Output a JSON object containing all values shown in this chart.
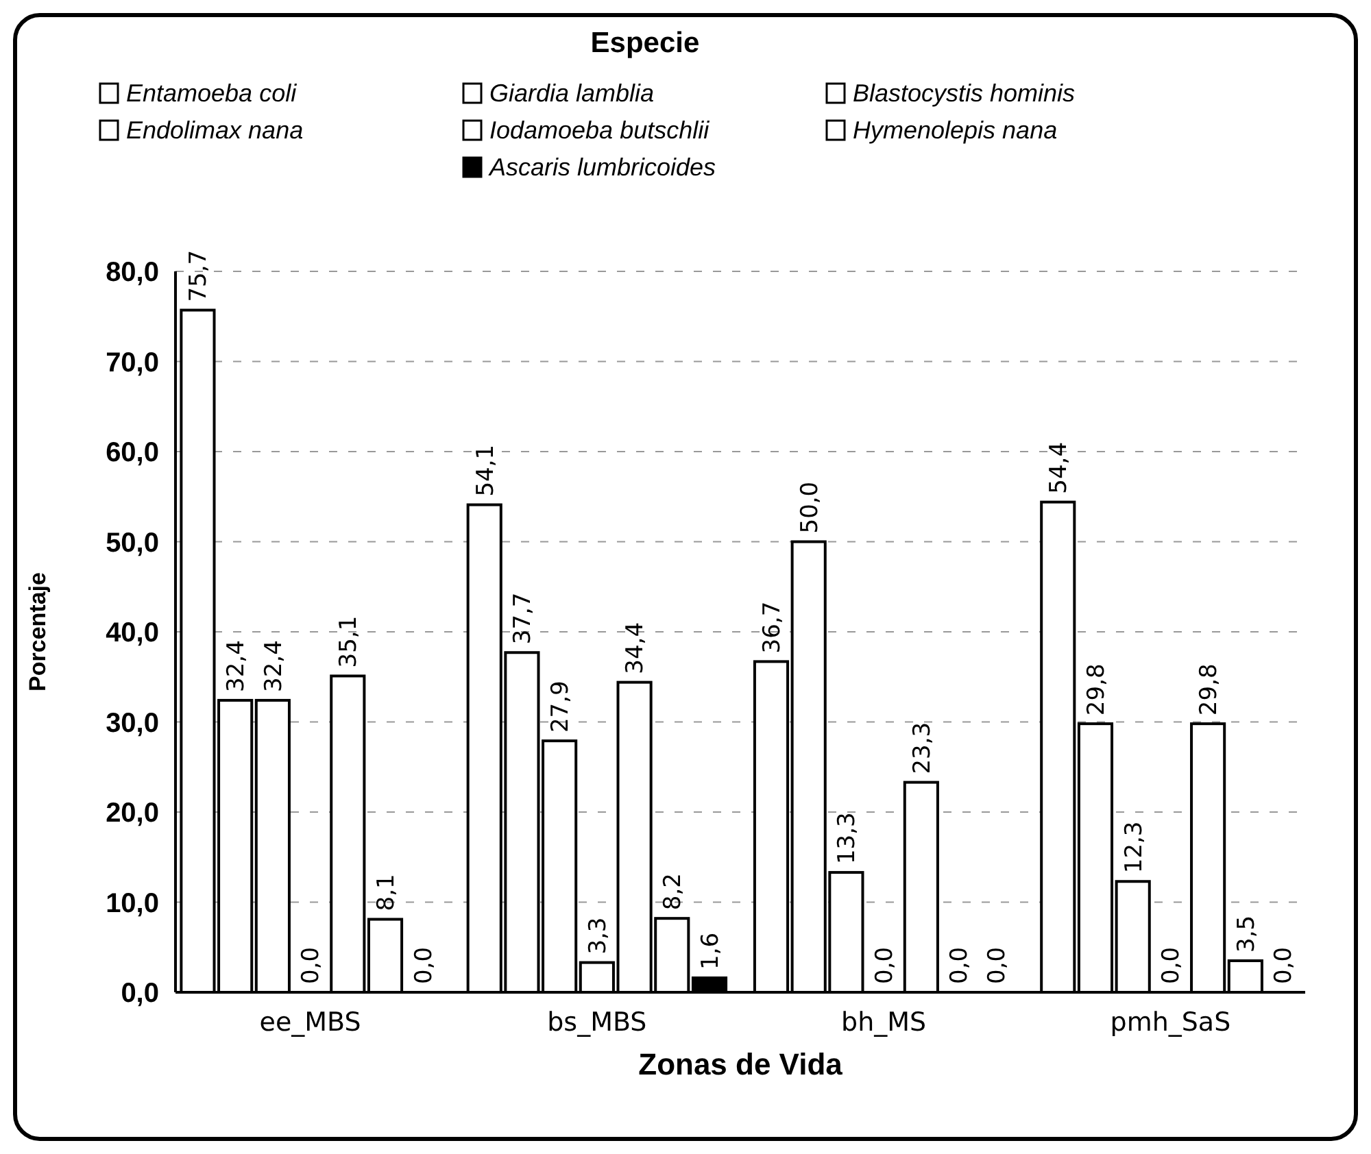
{
  "chart_data": {
    "type": "bar",
    "xlabel": "Zonas de Vida",
    "ylabel": "Porcentaje",
    "legend_title": "Especie",
    "legend": "top",
    "grid": "y",
    "categories": [
      "ee_MBS",
      "bs_MBS",
      "bh_MS",
      "pmh_SaS"
    ],
    "ylim": [
      0,
      80
    ],
    "yticks": [
      {
        "value": 0,
        "label": "0,0"
      },
      {
        "value": 10,
        "label": "10,0"
      },
      {
        "value": 20,
        "label": "20,0"
      },
      {
        "value": 30,
        "label": "30,0"
      },
      {
        "value": 40,
        "label": "40,0"
      },
      {
        "value": 50,
        "label": "50,0"
      },
      {
        "value": 60,
        "label": "60,0"
      },
      {
        "value": 70,
        "label": "70,0"
      },
      {
        "value": 80,
        "label": "80,0"
      }
    ],
    "series": [
      {
        "name": "Entamoeba coli",
        "color": "#ffffff",
        "values": [
          75.7,
          54.1,
          36.7,
          54.4
        ],
        "value_labels": [
          "75,7",
          "54,1",
          "36,7",
          "54,4"
        ]
      },
      {
        "name": "Giardia lamblia",
        "color": "#ffffff",
        "values": [
          32.4,
          37.7,
          50.0,
          29.8
        ],
        "value_labels": [
          "32,4",
          "37,7",
          "50,0",
          "29,8"
        ]
      },
      {
        "name": "Blastocystis hominis",
        "color": "#ffffff",
        "values": [
          32.4,
          27.9,
          13.3,
          12.3
        ],
        "value_labels": [
          "32,4",
          "27,9",
          "13,3",
          "12,3"
        ]
      },
      {
        "name": "Endolimax nana",
        "color": "#ffffff",
        "values": [
          0.0,
          3.3,
          0.0,
          0.0
        ],
        "value_labels": [
          "0,0",
          "3,3",
          "0,0",
          "0,0"
        ]
      },
      {
        "name": "Iodamoeba butschlii",
        "color": "#ffffff",
        "values": [
          35.1,
          34.4,
          23.3,
          29.8
        ],
        "value_labels": [
          "35,1",
          "34,4",
          "23,3",
          "29,8"
        ]
      },
      {
        "name": "Hymenolepis nana",
        "color": "#ffffff",
        "values": [
          8.1,
          8.2,
          0.0,
          3.5
        ],
        "value_labels": [
          "8,1",
          "8,2",
          "0,0",
          "3,5"
        ]
      },
      {
        "name": "Ascaris lumbricoides",
        "color": "#000000",
        "values": [
          0.0,
          1.6,
          0.0,
          0.0
        ],
        "value_labels": [
          "0,0",
          "1,6",
          "0,0",
          "0,0"
        ]
      }
    ]
  }
}
